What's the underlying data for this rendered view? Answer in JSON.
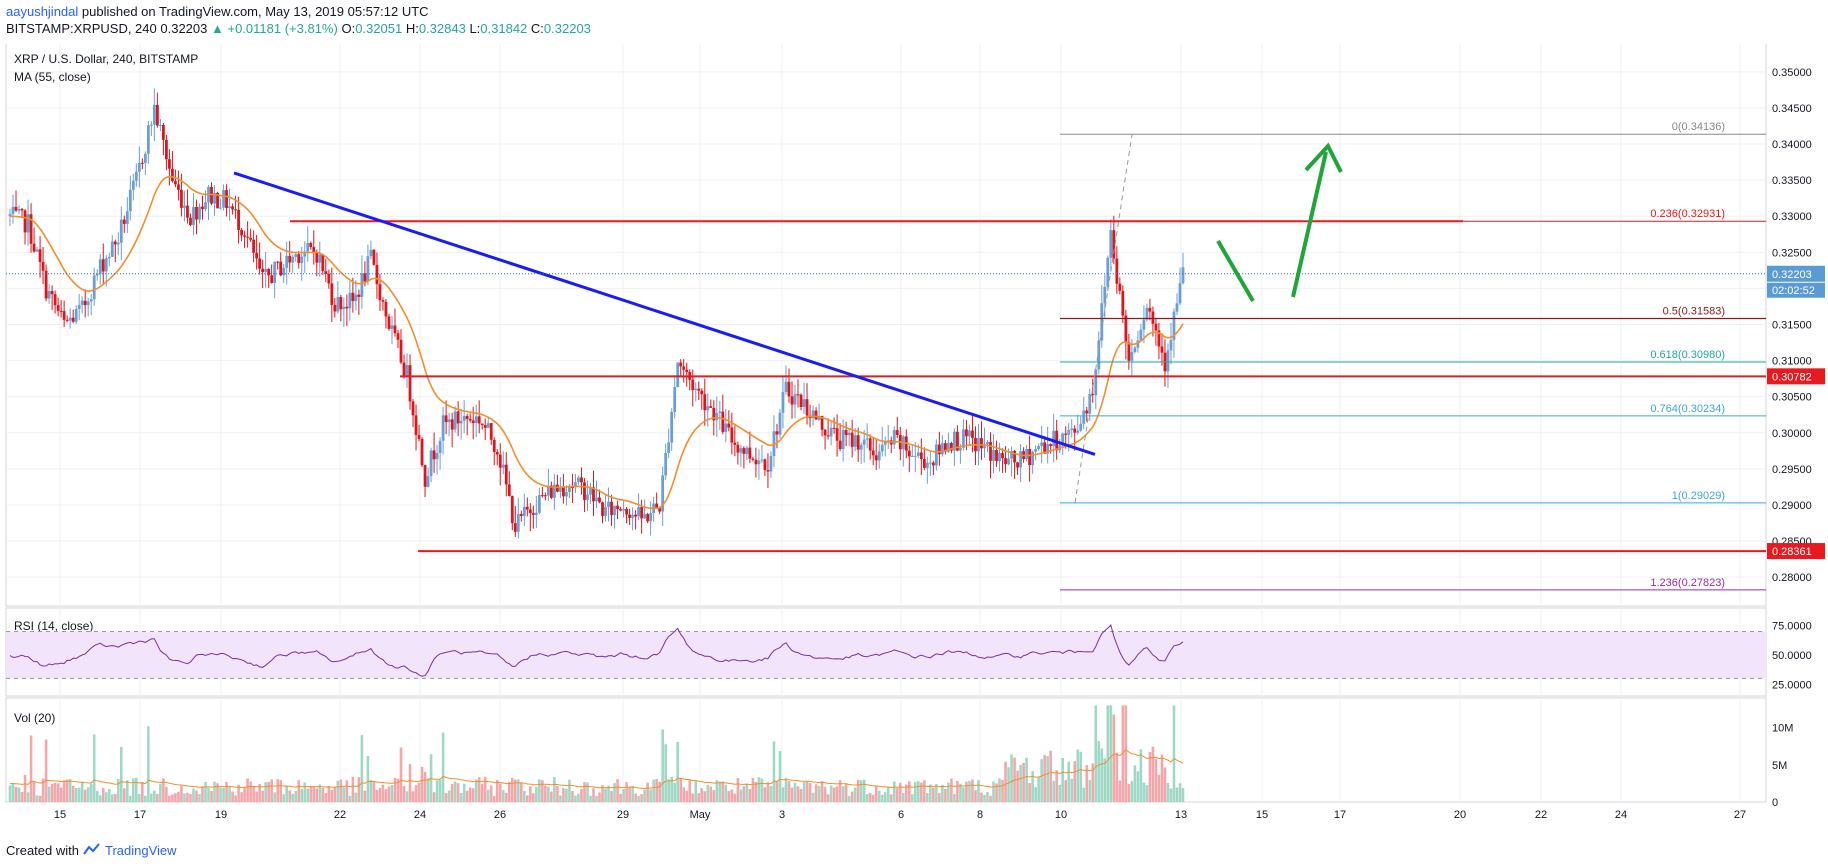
{
  "header": {
    "author": "aayushjindal",
    "published_text": "published on TradingView.com, May 13, 2019 05:57:12 UTC",
    "symbol": "BITSTAMP:XRPUSD, 240",
    "last": "0.32203",
    "change": "▲ +0.01181 (+3.81%)",
    "o_label": "O:",
    "o_value": "0.32051",
    "h_label": "H:",
    "h_value": "0.32843",
    "l_label": "L:",
    "l_value": "0.31842",
    "c_label": "C:",
    "c_value": "0.32203"
  },
  "footer": {
    "created_with": "Created with",
    "brand": "TradingView"
  },
  "colors": {
    "up": "#6a9fd6",
    "down": "#e0151b",
    "ma": "#f28e2b",
    "trendline": "#1a1aff",
    "level": "#e8191f",
    "arrow": "#1ea63a",
    "rsi": "#7b2fa3"
  },
  "chart_data": [
    {
      "type": "candlestick",
      "title": "XRP / U.S. Dollar, 240, BITSTAMP",
      "indicator_label": "MA (55, close)",
      "x_ticks": [
        "15",
        "17",
        "19",
        "22",
        "24",
        "26",
        "29",
        "May",
        "3",
        "6",
        "8",
        "10",
        "13",
        "15",
        "17",
        "20",
        "22",
        "24",
        "27"
      ],
      "y_ticks": [
        "0.35000",
        "0.34500",
        "0.34000",
        "0.33500",
        "0.33000",
        "0.32500",
        "0.32000",
        "0.31500",
        "0.31000",
        "0.30500",
        "0.30000",
        "0.29500",
        "0.29000",
        "0.28500",
        "0.28000"
      ],
      "ylim": [
        0.276,
        0.354
      ],
      "anchors": [
        0.33,
        0.329,
        0.32,
        0.315,
        0.317,
        0.323,
        0.327,
        0.335,
        0.345,
        0.335,
        0.33,
        0.333,
        0.332,
        0.328,
        0.321,
        0.323,
        0.325,
        0.325,
        0.318,
        0.318,
        0.324,
        0.315,
        0.308,
        0.294,
        0.301,
        0.302,
        0.302,
        0.298,
        0.287,
        0.29,
        0.292,
        0.293,
        0.292,
        0.289,
        0.29,
        0.288,
        0.29,
        0.31,
        0.306,
        0.303,
        0.299,
        0.297,
        0.296,
        0.306,
        0.304,
        0.301,
        0.299,
        0.299,
        0.297,
        0.299,
        0.297,
        0.296,
        0.299,
        0.299,
        0.298,
        0.296,
        0.296,
        0.298,
        0.299,
        0.3,
        0.306,
        0.328,
        0.31,
        0.318,
        0.31,
        0.322
      ],
      "anchor_step": 6,
      "candle_count": 391,
      "last_close": 0.32203,
      "current_price_label": "0.32203",
      "countdown_label": "02:02:52",
      "horizontal_levels": [
        {
          "price": 0.3293,
          "label": ""
        },
        {
          "price": 0.30782,
          "label": "0.30782"
        },
        {
          "price": 0.28361,
          "label": "0.28361"
        }
      ],
      "fibonacci": [
        {
          "ratio": "0",
          "price": 0.34136,
          "label": "0(0.34136)",
          "color": "#888888"
        },
        {
          "ratio": "0.236",
          "price": 0.32931,
          "label": "0.236(0.32931)",
          "color": "#e8191f"
        },
        {
          "ratio": "0.5",
          "price": 0.31583,
          "label": "0.5(0.31583)",
          "color": "#8b1a1a"
        },
        {
          "ratio": "0.618",
          "price": 0.3098,
          "label": "0.618(0.30980)",
          "color": "#26a69a"
        },
        {
          "ratio": "0.764",
          "price": 0.30234,
          "label": "0.764(0.30234)",
          "color": "#3fa5d6"
        },
        {
          "ratio": "1",
          "price": 0.29029,
          "label": "1(0.29029)",
          "color": "#3fa5d6"
        },
        {
          "ratio": "1.236",
          "price": 0.27823,
          "label": "1.236(0.27823)",
          "color": "#9c27b0"
        }
      ],
      "trendline": {
        "from": {
          "x": "19",
          "y": 0.336
        },
        "to": {
          "x": "11",
          "y": 0.297
        }
      }
    },
    {
      "type": "line",
      "title": "RSI (14, close)",
      "y_ticks": [
        "75.0000",
        "50.0000",
        "25.0000"
      ],
      "ylim": [
        15,
        90
      ],
      "bands": [
        30,
        70
      ]
    },
    {
      "type": "bar",
      "title": "Vol (20)",
      "y_ticks": [
        "10M",
        "5M",
        "0"
      ],
      "ylim": [
        0,
        14
      ]
    }
  ]
}
